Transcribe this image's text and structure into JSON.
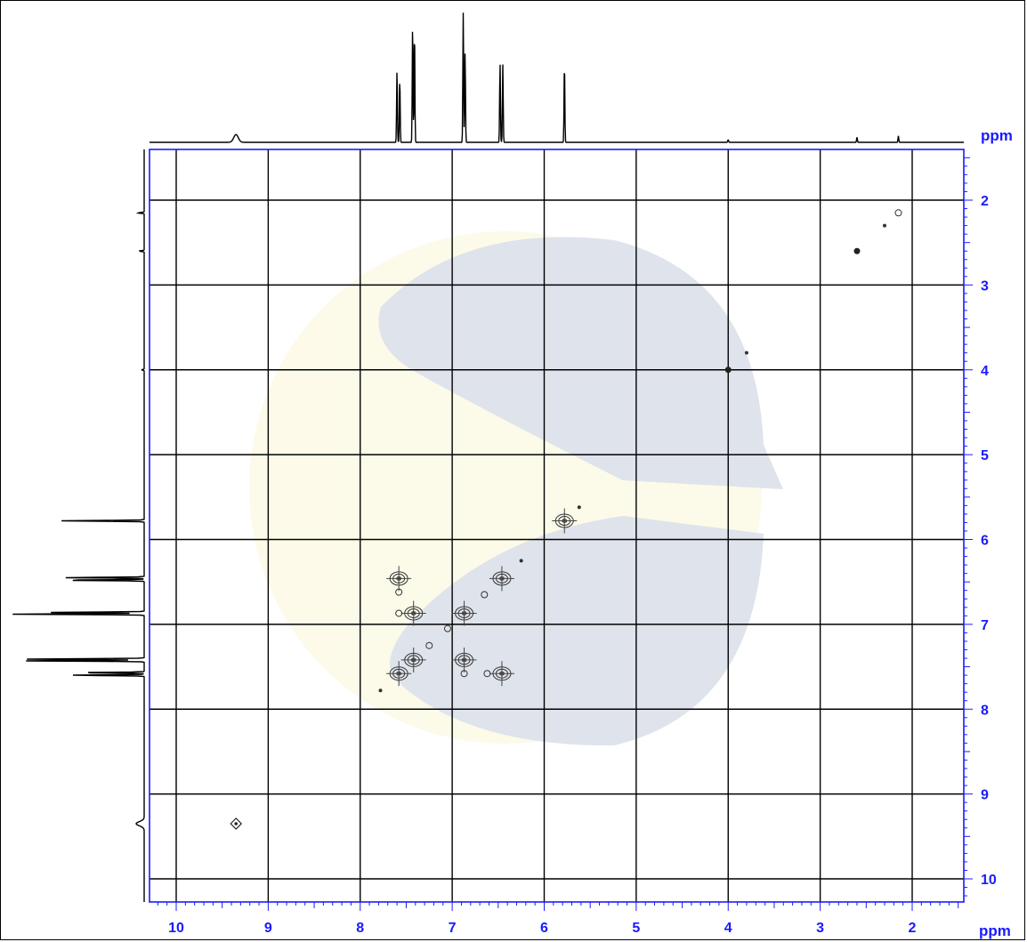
{
  "chart_data": {
    "type": "heatmap",
    "subtype": "2D NMR (COSY) contour plot",
    "title": "",
    "x_axis": {
      "label": "ppm",
      "range": [
        10.3,
        1.4
      ],
      "reversed": true,
      "ticks": [
        "10",
        "9",
        "8",
        "7",
        "6",
        "5",
        "4",
        "3",
        "2"
      ]
    },
    "y_axis": {
      "label": "ppm",
      "range": [
        1.4,
        10.3
      ],
      "position": "right",
      "ticks": [
        "2",
        "3",
        "4",
        "5",
        "6",
        "7",
        "8",
        "9",
        "10"
      ]
    },
    "grid": true,
    "projection_1d_peaks": [
      {
        "ppm": 9.35,
        "height": 0.06
      },
      {
        "ppm": 7.6,
        "height": 0.55
      },
      {
        "ppm": 7.57,
        "height": 0.5
      },
      {
        "ppm": 7.43,
        "height": 0.92
      },
      {
        "ppm": 7.41,
        "height": 0.88
      },
      {
        "ppm": 6.88,
        "height": 1.0
      },
      {
        "ppm": 6.86,
        "height": 0.7
      },
      {
        "ppm": 6.48,
        "height": 0.62
      },
      {
        "ppm": 6.45,
        "height": 0.6
      },
      {
        "ppm": 5.78,
        "height": 0.62
      },
      {
        "ppm": 4.0,
        "height": 0.02
      },
      {
        "ppm": 2.6,
        "height": 0.04
      },
      {
        "ppm": 2.15,
        "height": 0.05
      }
    ],
    "diagonal_peaks": [
      {
        "x": 9.35,
        "y": 9.35,
        "size": "medium",
        "style": "ring"
      },
      {
        "x": 7.58,
        "y": 7.58,
        "size": "large",
        "style": "ring"
      },
      {
        "x": 7.42,
        "y": 7.42,
        "size": "large",
        "style": "ring"
      },
      {
        "x": 6.87,
        "y": 6.87,
        "size": "large",
        "style": "ring"
      },
      {
        "x": 6.46,
        "y": 6.46,
        "size": "large",
        "style": "ring"
      },
      {
        "x": 5.78,
        "y": 5.78,
        "size": "large",
        "style": "ring"
      },
      {
        "x": 4.0,
        "y": 4.0,
        "size": "small",
        "style": "dot"
      },
      {
        "x": 2.6,
        "y": 2.6,
        "size": "small",
        "style": "dot"
      },
      {
        "x": 2.15,
        "y": 2.15,
        "size": "small",
        "style": "ring"
      }
    ],
    "cross_peaks": [
      {
        "x": 7.58,
        "y": 6.46,
        "size": "large"
      },
      {
        "x": 6.46,
        "y": 7.58,
        "size": "large"
      },
      {
        "x": 7.42,
        "y": 6.87,
        "size": "large"
      },
      {
        "x": 6.87,
        "y": 7.42,
        "size": "large"
      },
      {
        "x": 7.58,
        "y": 6.62,
        "size": "small"
      },
      {
        "x": 6.62,
        "y": 7.58,
        "size": "small"
      },
      {
        "x": 7.58,
        "y": 6.87,
        "size": "small"
      },
      {
        "x": 6.87,
        "y": 7.58,
        "size": "small"
      },
      {
        "x": 7.25,
        "y": 7.25,
        "size": "small"
      },
      {
        "x": 7.05,
        "y": 7.05,
        "size": "small"
      },
      {
        "x": 6.65,
        "y": 6.65,
        "size": "small"
      },
      {
        "x": 5.62,
        "y": 5.62,
        "size": "tiny"
      },
      {
        "x": 6.25,
        "y": 6.25,
        "size": "tiny"
      },
      {
        "x": 7.78,
        "y": 7.78,
        "size": "tiny"
      },
      {
        "x": 3.8,
        "y": 3.8,
        "size": "tiny"
      },
      {
        "x": 2.3,
        "y": 2.3,
        "size": "tiny"
      }
    ]
  }
}
